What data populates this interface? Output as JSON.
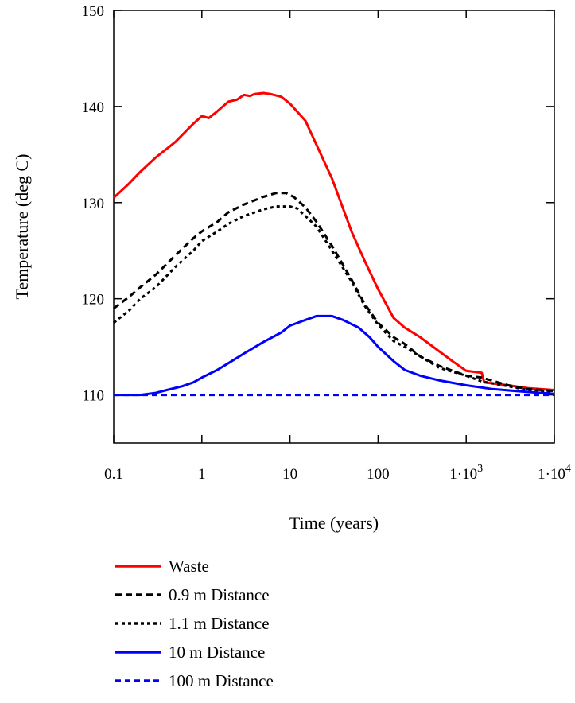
{
  "chart_data": {
    "type": "line",
    "xlabel": "Time (years)",
    "ylabel": "Temperature (deg C)",
    "x_scale": "log",
    "xlim": [
      0.1,
      10000
    ],
    "ylim": [
      105,
      150
    ],
    "x_ticks": [
      {
        "value": 0.1,
        "label": "0.1"
      },
      {
        "value": 1,
        "label": "1"
      },
      {
        "value": 10,
        "label": "10"
      },
      {
        "value": 100,
        "label": "100"
      },
      {
        "value": 1000,
        "label": "1·10",
        "sup": "3"
      },
      {
        "value": 10000,
        "label": "1·10",
        "sup": "4"
      }
    ],
    "y_ticks": [
      {
        "value": 110,
        "label": "110"
      },
      {
        "value": 120,
        "label": "120"
      },
      {
        "value": 130,
        "label": "130"
      },
      {
        "value": 140,
        "label": "140"
      },
      {
        "value": 150,
        "label": "150"
      }
    ],
    "grid": false,
    "legend_position": "bottom",
    "series": [
      {
        "name": "Waste",
        "color": "#ff0000",
        "dash": "solid",
        "points": [
          [
            0.1,
            130.5
          ],
          [
            0.15,
            132
          ],
          [
            0.2,
            133.2
          ],
          [
            0.3,
            134.7
          ],
          [
            0.5,
            136.3
          ],
          [
            0.8,
            138.2
          ],
          [
            1,
            139
          ],
          [
            1.2,
            138.8
          ],
          [
            1.5,
            139.5
          ],
          [
            2,
            140.5
          ],
          [
            2.5,
            140.7
          ],
          [
            3,
            141.2
          ],
          [
            3.5,
            141.1
          ],
          [
            4,
            141.3
          ],
          [
            5,
            141.4
          ],
          [
            6,
            141.3
          ],
          [
            8,
            141
          ],
          [
            10,
            140.3
          ],
          [
            15,
            138.5
          ],
          [
            20,
            136
          ],
          [
            30,
            132.5
          ],
          [
            50,
            127
          ],
          [
            70,
            124
          ],
          [
            100,
            121
          ],
          [
            150,
            118
          ],
          [
            200,
            117
          ],
          [
            300,
            116
          ],
          [
            500,
            114.5
          ],
          [
            700,
            113.5
          ],
          [
            1000,
            112.5
          ],
          [
            1500,
            112.3
          ],
          [
            1600,
            111.3
          ],
          [
            3000,
            111
          ],
          [
            5000,
            110.7
          ],
          [
            10000,
            110.5
          ]
        ]
      },
      {
        "name": "0.9 m Distance",
        "color": "#000000",
        "dash": "long-dash",
        "points": [
          [
            0.1,
            119
          ],
          [
            0.15,
            120.2
          ],
          [
            0.2,
            121.2
          ],
          [
            0.3,
            122.5
          ],
          [
            0.5,
            124.5
          ],
          [
            0.8,
            126.3
          ],
          [
            1,
            127
          ],
          [
            1.5,
            128
          ],
          [
            2,
            129
          ],
          [
            3,
            129.8
          ],
          [
            5,
            130.6
          ],
          [
            7,
            131
          ],
          [
            9,
            131
          ],
          [
            11,
            130.6
          ],
          [
            15,
            129.5
          ],
          [
            20,
            128
          ],
          [
            30,
            125.5
          ],
          [
            50,
            122
          ],
          [
            70,
            119.5
          ],
          [
            100,
            117.5
          ],
          [
            150,
            116
          ],
          [
            200,
            115.3
          ],
          [
            300,
            114
          ],
          [
            500,
            113
          ],
          [
            1000,
            112
          ],
          [
            1500,
            111.8
          ],
          [
            3000,
            111
          ],
          [
            5000,
            110.6
          ],
          [
            10000,
            110.4
          ]
        ]
      },
      {
        "name": "1.1 m Distance",
        "color": "#000000",
        "dash": "short-dash",
        "points": [
          [
            0.1,
            117.5
          ],
          [
            0.15,
            118.8
          ],
          [
            0.2,
            120
          ],
          [
            0.3,
            121.2
          ],
          [
            0.5,
            123.3
          ],
          [
            0.8,
            125
          ],
          [
            1,
            126
          ],
          [
            1.5,
            127
          ],
          [
            2,
            127.8
          ],
          [
            3,
            128.6
          ],
          [
            5,
            129.3
          ],
          [
            7,
            129.6
          ],
          [
            10,
            129.6
          ],
          [
            12,
            129.4
          ],
          [
            15,
            128.6
          ],
          [
            20,
            127.5
          ],
          [
            30,
            125
          ],
          [
            50,
            121.8
          ],
          [
            70,
            119.3
          ],
          [
            100,
            117.3
          ],
          [
            150,
            115.6
          ],
          [
            200,
            115
          ],
          [
            300,
            114
          ],
          [
            500,
            112.8
          ],
          [
            1000,
            112
          ],
          [
            1500,
            111.4
          ],
          [
            3000,
            110.9
          ],
          [
            5000,
            110.5
          ],
          [
            10000,
            110.3
          ]
        ]
      },
      {
        "name": "10 m  Distance",
        "color": "#0000ff",
        "dash": "solid",
        "points": [
          [
            0.1,
            110
          ],
          [
            0.2,
            110
          ],
          [
            0.3,
            110.2
          ],
          [
            0.4,
            110.5
          ],
          [
            0.6,
            110.9
          ],
          [
            0.8,
            111.3
          ],
          [
            1,
            111.8
          ],
          [
            1.5,
            112.6
          ],
          [
            2,
            113.3
          ],
          [
            3,
            114.3
          ],
          [
            5,
            115.5
          ],
          [
            8,
            116.5
          ],
          [
            10,
            117.2
          ],
          [
            15,
            117.8
          ],
          [
            20,
            118.2
          ],
          [
            30,
            118.2
          ],
          [
            40,
            117.8
          ],
          [
            60,
            117
          ],
          [
            80,
            116
          ],
          [
            100,
            115
          ],
          [
            150,
            113.5
          ],
          [
            200,
            112.6
          ],
          [
            300,
            112
          ],
          [
            500,
            111.5
          ],
          [
            1000,
            111
          ],
          [
            2000,
            110.6
          ],
          [
            5000,
            110.3
          ],
          [
            10000,
            110.1
          ]
        ]
      },
      {
        "name": "100 m Distance",
        "color": "#0000ff",
        "dash": "dash",
        "points": [
          [
            0.1,
            110
          ],
          [
            10000,
            110
          ]
        ]
      }
    ]
  }
}
